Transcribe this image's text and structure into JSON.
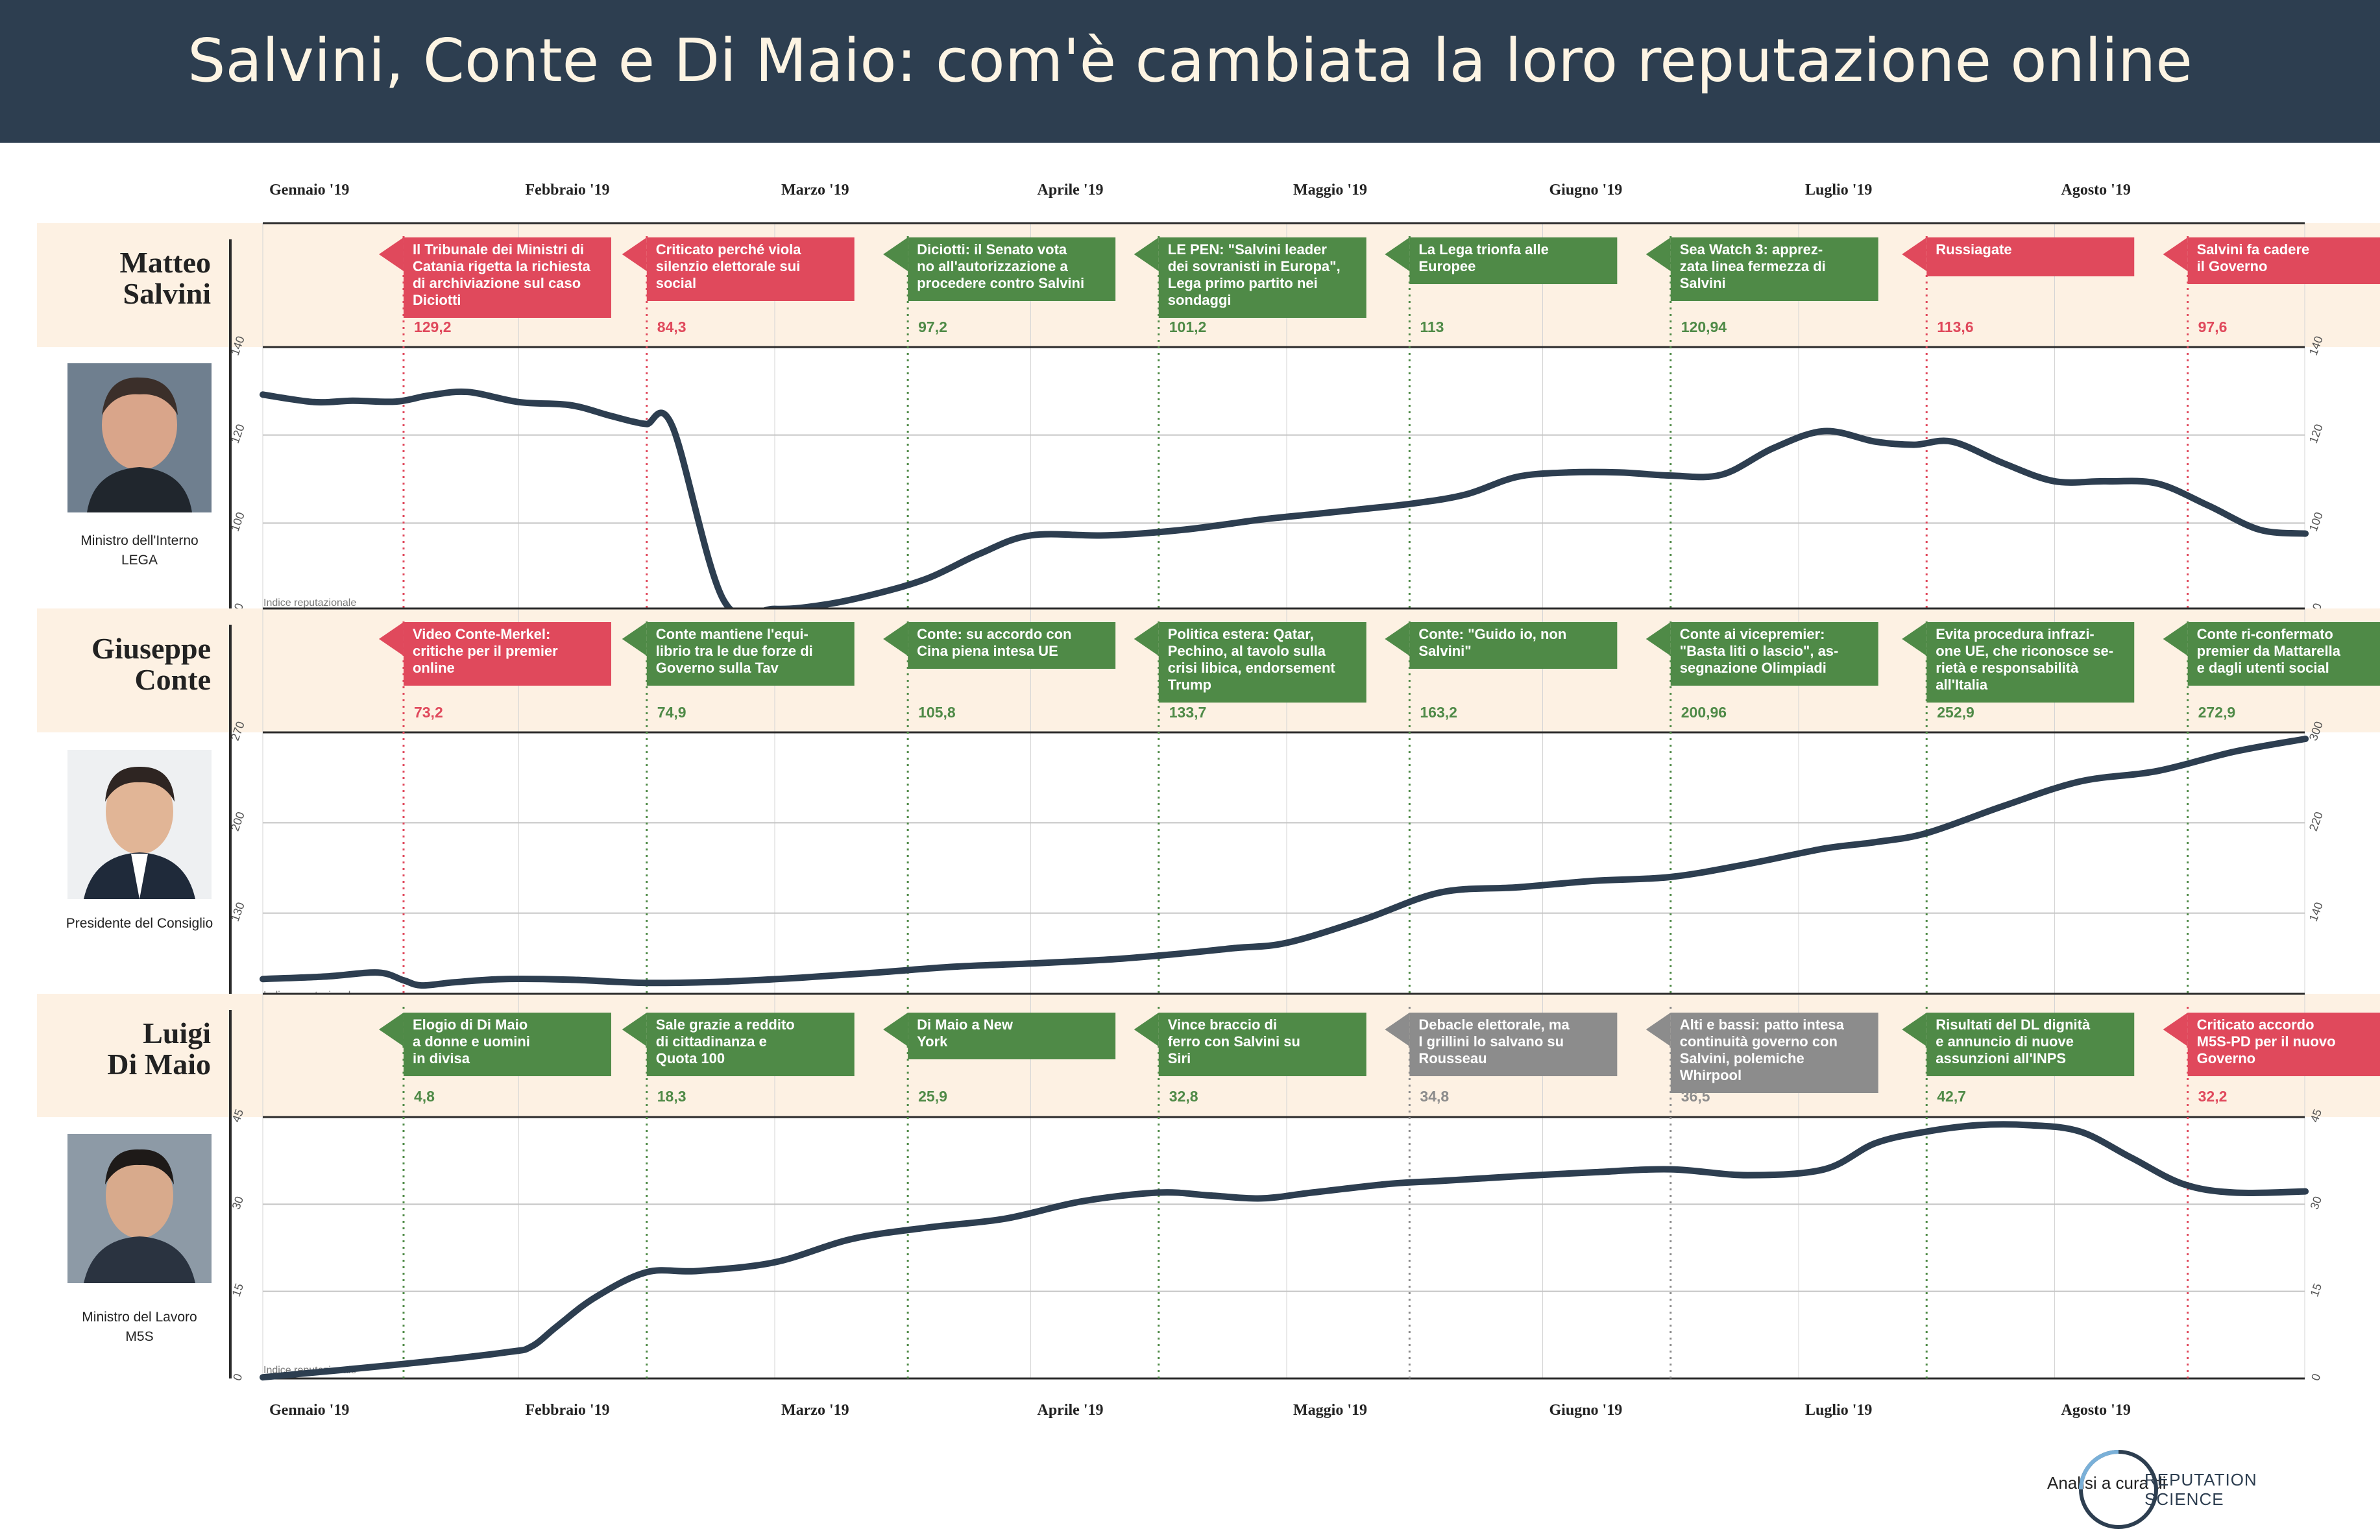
{
  "title": "Salvini, Conte e Di Maio: com'è cambiata la loro reputazione online",
  "months": [
    "Gennaio '19",
    "Febbraio '19",
    "Marzo '19",
    "Aprile '19",
    "Maggio '19",
    "Giugno '19",
    "Luglio '19",
    "Agosto '19"
  ],
  "credit": {
    "label": "Analisi a cura di",
    "brand_line1": "REPUTATION",
    "brand_line2": "SCIENCE"
  },
  "colors": {
    "header": "#2d3e50",
    "band": "#fdf1e3",
    "positive": "#4f8a47",
    "negative": "#e0495c",
    "neutral": "#8c8c8c",
    "line": "#2d3e50"
  },
  "chart_data": [
    {
      "type": "line",
      "person_first": "Matteo",
      "person_last": "Salvini",
      "role_line1": "Ministro dell'Interno",
      "role_line2": "LEGA",
      "axis_label": "Indice reputazionale",
      "ylim": [
        80,
        140
      ],
      "yticks": [
        80,
        100,
        120,
        140
      ],
      "x": [
        0.0,
        0.2,
        0.35,
        0.52,
        0.65,
        0.8,
        1.0,
        1.2,
        1.35,
        1.45,
        1.5,
        1.6,
        1.8,
        2.0,
        2.2,
        2.4,
        2.6,
        2.8,
        3.0,
        3.3,
        3.6,
        3.9,
        4.1,
        4.3,
        4.5,
        4.7,
        4.9,
        5.1,
        5.3,
        5.5,
        5.7,
        5.9,
        6.1,
        6.3,
        6.45,
        6.6,
        6.8,
        7.0,
        7.2,
        7.4,
        7.6,
        7.8,
        7.98
      ],
      "y": [
        129.2,
        127.5,
        127.8,
        127.6,
        129.0,
        129.8,
        127.5,
        126.8,
        124.5,
        123.0,
        122.5,
        122.0,
        82.5,
        80.5,
        81.5,
        84.0,
        87.5,
        93.0,
        97.2,
        97.2,
        98.5,
        100.8,
        102.0,
        103.2,
        104.5,
        106.5,
        110.5,
        111.5,
        111.5,
        110.8,
        111.0,
        117.0,
        120.9,
        118.5,
        117.8,
        118.5,
        113.6,
        109.5,
        109.5,
        109.0,
        104.0,
        98.5,
        97.6
      ],
      "events": [
        {
          "x": 0.55,
          "text": [
            "Il Tribunale dei Ministri di",
            "Catania rigetta la richiesta",
            "di archiviazione sul caso",
            "Diciotti"
          ],
          "value": "129,2",
          "sentiment": "negative"
        },
        {
          "x": 1.5,
          "text": [
            "Criticato perché viola",
            "silenzio elettorale sui",
            "social"
          ],
          "value": "84,3",
          "sentiment": "negative"
        },
        {
          "x": 2.52,
          "text": [
            "Diciotti: il Senato vota",
            "no all'autorizzazione a",
            "procedere contro Salvini"
          ],
          "value": "97,2",
          "sentiment": "positive"
        },
        {
          "x": 3.5,
          "text": [
            "LE PEN: \"Salvini leader",
            "dei sovranisti in Europa\",",
            "Lega primo partito nei",
            "sondaggi"
          ],
          "value": "101,2",
          "sentiment": "positive"
        },
        {
          "x": 4.48,
          "text": [
            "La Lega trionfa alle",
            "Europee"
          ],
          "value": "113",
          "sentiment": "positive"
        },
        {
          "x": 5.5,
          "text": [
            "Sea Watch 3: apprez-",
            "zata linea fermezza di",
            "Salvini"
          ],
          "value": "120,94",
          "sentiment": "positive"
        },
        {
          "x": 6.5,
          "text": [
            "Russiagate"
          ],
          "value": "113,6",
          "sentiment": "negative"
        },
        {
          "x": 7.52,
          "text": [
            "Salvini fa cadere",
            "il Governo"
          ],
          "value": "97,6",
          "sentiment": "negative"
        }
      ]
    },
    {
      "type": "line",
      "person_first": "Giuseppe",
      "person_last": "Conte",
      "role_line1": "Presidente del Consiglio",
      "role_line2": "",
      "axis_label": "Indice reputazionale",
      "ylim": [
        60,
        270
      ],
      "yticks": [
        60,
        130,
        200,
        270
      ],
      "right_yticks": [
        60,
        140,
        220,
        300
      ],
      "x": [
        0.0,
        0.25,
        0.45,
        0.55,
        0.62,
        0.75,
        0.95,
        1.2,
        1.5,
        1.8,
        2.1,
        2.4,
        2.7,
        3.0,
        3.3,
        3.55,
        3.8,
        4.0,
        4.3,
        4.6,
        4.9,
        5.2,
        5.5,
        5.8,
        6.1,
        6.3,
        6.5,
        6.8,
        7.1,
        7.4,
        7.7,
        7.98
      ],
      "y": [
        79.0,
        81.0,
        84.0,
        78.0,
        74.0,
        76.5,
        79.0,
        78.5,
        76.0,
        77.0,
        80.0,
        84.0,
        88.5,
        91.0,
        94.0,
        98.0,
        103.0,
        107.0,
        125.0,
        146.0,
        150.0,
        155.0,
        158.0,
        168.0,
        180.0,
        185.0,
        192.0,
        213.0,
        232.0,
        240.0,
        255.0,
        265.0
      ],
      "events": [
        {
          "x": 0.55,
          "text": [
            "Video Conte-Merkel:",
            "critiche per il premier",
            "online"
          ],
          "value": "73,2",
          "sentiment": "negative"
        },
        {
          "x": 1.5,
          "text": [
            "Conte mantiene l'equi-",
            "librio tra le due forze di",
            "Governo sulla Tav"
          ],
          "value": "74,9",
          "sentiment": "positive"
        },
        {
          "x": 2.52,
          "text": [
            "Conte: su accordo con",
            "Cina piena intesa UE"
          ],
          "value": "105,8",
          "sentiment": "positive"
        },
        {
          "x": 3.5,
          "text": [
            "Politica estera: Qatar,",
            "Pechino, al tavolo sulla",
            "crisi libica, endorsement",
            "Trump"
          ],
          "value": "133,7",
          "sentiment": "positive"
        },
        {
          "x": 4.48,
          "text": [
            "Conte: \"Guido io, non",
            "Salvini\""
          ],
          "value": "163,2",
          "sentiment": "positive"
        },
        {
          "x": 5.5,
          "text": [
            "Conte ai vicepremier:",
            "\"Basta liti o lascio\", as-",
            "segnazione Olimpiadi"
          ],
          "value": "200,96",
          "sentiment": "positive"
        },
        {
          "x": 6.5,
          "text": [
            "Evita procedura infrazi-",
            "one UE, che riconosce se-",
            "rietà e responsabilità",
            "all'Italia"
          ],
          "value": "252,9",
          "sentiment": "positive"
        },
        {
          "x": 7.52,
          "text": [
            "Conte ri-confermato",
            "premier da Mattarella",
            "e dagli utenti social"
          ],
          "value": "272,9",
          "sentiment": "positive"
        }
      ]
    },
    {
      "type": "line",
      "person_first": "Luigi",
      "person_last": "Di Maio",
      "role_line1": "Ministro del Lavoro",
      "role_line2": "M5S",
      "axis_label": "Indice reputazionale",
      "ylim": [
        0,
        45
      ],
      "yticks": [
        0,
        15,
        30,
        45
      ],
      "x": [
        0.0,
        0.55,
        0.95,
        1.05,
        1.15,
        1.3,
        1.5,
        1.7,
        2.0,
        2.3,
        2.6,
        2.9,
        3.2,
        3.5,
        3.7,
        3.9,
        4.1,
        4.4,
        4.6,
        4.9,
        5.2,
        5.5,
        5.8,
        6.1,
        6.3,
        6.5,
        6.7,
        6.9,
        7.1,
        7.3,
        7.5,
        7.7,
        7.98
      ],
      "y": [
        0.2,
        2.5,
        4.5,
        5.5,
        9.0,
        14.0,
        18.3,
        18.5,
        20.0,
        24.0,
        26.0,
        27.5,
        30.5,
        32.0,
        31.5,
        31.0,
        32.0,
        33.5,
        34.0,
        34.8,
        35.5,
        36.0,
        35.0,
        36.0,
        40.5,
        42.5,
        43.6,
        43.6,
        42.5,
        38.0,
        33.5,
        32.0,
        32.2
      ],
      "events": [
        {
          "x": 0.55,
          "text": [
            "Elogio di Di Maio",
            "a donne e uomini",
            "in divisa"
          ],
          "value": "4,8",
          "sentiment": "positive"
        },
        {
          "x": 1.5,
          "text": [
            "Sale grazie a reddito",
            "di cittadinanza e",
            "Quota 100"
          ],
          "value": "18,3",
          "sentiment": "positive"
        },
        {
          "x": 2.52,
          "text": [
            "Di Maio a New",
            "York"
          ],
          "value": "25,9",
          "sentiment": "positive"
        },
        {
          "x": 3.5,
          "text": [
            "Vince braccio di",
            "ferro con Salvini su",
            "Siri"
          ],
          "value": "32,8",
          "sentiment": "positive"
        },
        {
          "x": 4.48,
          "text": [
            "Debacle elettorale, ma",
            "I grillini lo salvano su",
            "Rousseau"
          ],
          "value": "34,8",
          "sentiment": "neutral"
        },
        {
          "x": 5.5,
          "text": [
            "Alti e bassi: patto intesa",
            "continuità governo con",
            "Salvini, polemiche",
            "Whirpool"
          ],
          "value": "36,5",
          "sentiment": "neutral"
        },
        {
          "x": 6.5,
          "text": [
            "Risultati del DL dignità",
            "e annuncio di nuove",
            "assunzioni all'INPS"
          ],
          "value": "42,7",
          "sentiment": "positive"
        },
        {
          "x": 7.52,
          "text": [
            "Criticato accordo",
            "M5S-PD per il nuovo",
            "Governo"
          ],
          "value": "32,2",
          "sentiment": "negative"
        }
      ]
    }
  ]
}
